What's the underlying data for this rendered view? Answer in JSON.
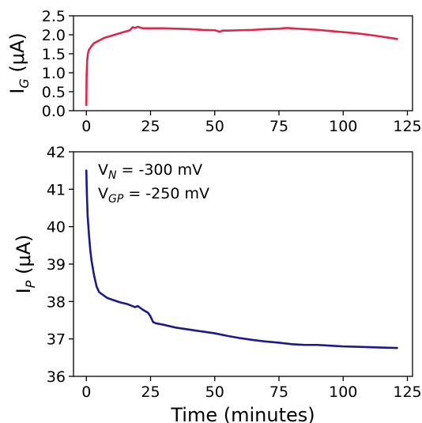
{
  "chart_data": [
    {
      "type": "line",
      "ylabel": {
        "main": "I",
        "sub": "G",
        "unit": " (μA)"
      },
      "xlabel": "",
      "xlim": [
        -5,
        127
      ],
      "ylim": [
        0,
        2.5
      ],
      "xticks": [
        0,
        25,
        50,
        75,
        100,
        125
      ],
      "yticks": [
        0.0,
        0.5,
        1.0,
        1.5,
        2.0,
        2.5
      ],
      "ytick_labels": [
        "0.0",
        "0.5",
        "1.0",
        "1.5",
        "2.0",
        "2.5"
      ],
      "grid": false,
      "series": [
        {
          "color": "#e0264a",
          "x": [
            0,
            0.1,
            0.3,
            0.6,
            1,
            2,
            3,
            5,
            7,
            10,
            12,
            15,
            17,
            18,
            19,
            20,
            22,
            25,
            30,
            35,
            40,
            45,
            50,
            52,
            53,
            55,
            60,
            65,
            70,
            75,
            78,
            80,
            82,
            85,
            90,
            95,
            100,
            105,
            110,
            115,
            118,
            120,
            121
          ],
          "y": [
            0.15,
            0.9,
            1.3,
            1.5,
            1.6,
            1.7,
            1.78,
            1.85,
            1.92,
            1.98,
            2.02,
            2.08,
            2.12,
            2.2,
            2.18,
            2.21,
            2.17,
            2.17,
            2.17,
            2.16,
            2.15,
            2.13,
            2.12,
            2.08,
            2.11,
            2.11,
            2.12,
            2.13,
            2.15,
            2.16,
            2.18,
            2.17,
            2.16,
            2.15,
            2.13,
            2.1,
            2.07,
            2.04,
            2.0,
            1.95,
            1.92,
            1.9,
            1.89
          ]
        }
      ]
    },
    {
      "type": "line",
      "ylabel": {
        "main": "I",
        "sub": "P",
        "unit": " (μA)"
      },
      "xlabel": "Time (minutes)",
      "xlim": [
        -5,
        127
      ],
      "ylim": [
        36,
        42
      ],
      "xticks": [
        0,
        25,
        50,
        75,
        100,
        125
      ],
      "yticks": [
        36,
        37,
        38,
        39,
        40,
        41,
        42
      ],
      "ytick_labels": [
        "36",
        "37",
        "38",
        "39",
        "40",
        "41",
        "42"
      ],
      "grid": false,
      "annotations": [
        {
          "main": "V",
          "sub": "N",
          "rest": " = -300 mV"
        },
        {
          "main": "V",
          "sub": "GP",
          "rest": " = -250 mV"
        }
      ],
      "series": [
        {
          "color": "#1a1a8e",
          "x": [
            0,
            0.2,
            0.5,
            1,
            1.5,
            2,
            3,
            4,
            5,
            6,
            8,
            10,
            13,
            16,
            19,
            20,
            22,
            24,
            25,
            26,
            27,
            30,
            35,
            40,
            45,
            50,
            55,
            60,
            65,
            70,
            75,
            80,
            85,
            90,
            95,
            100,
            105,
            110,
            115,
            120,
            121
          ],
          "y": [
            41.5,
            40.9,
            40.3,
            39.8,
            39.4,
            39.1,
            38.7,
            38.4,
            38.25,
            38.2,
            38.1,
            38.05,
            37.98,
            37.93,
            37.85,
            37.88,
            37.78,
            37.7,
            37.6,
            37.45,
            37.42,
            37.38,
            37.3,
            37.25,
            37.2,
            37.15,
            37.08,
            37.02,
            36.97,
            36.93,
            36.9,
            36.86,
            36.84,
            36.84,
            36.82,
            36.8,
            36.79,
            36.78,
            36.77,
            36.76,
            36.76
          ]
        }
      ]
    }
  ]
}
